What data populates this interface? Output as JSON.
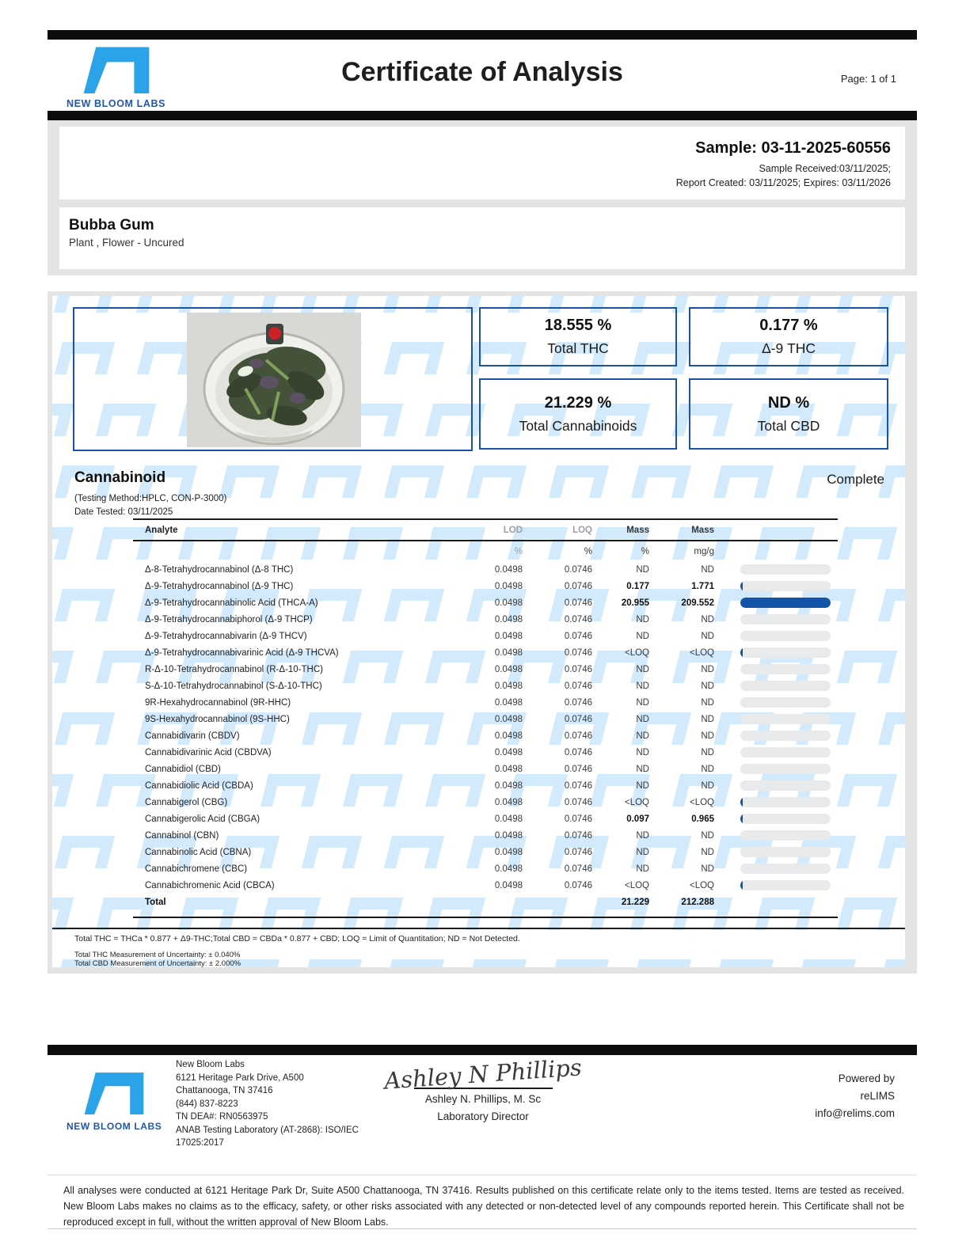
{
  "brand": {
    "name": "NEW BLOOM LABS"
  },
  "header": {
    "title": "Certificate of Analysis",
    "page_label": "Page: 1 of 1"
  },
  "sample": {
    "sample_line": "Sample: 03-11-2025-60556",
    "received_line": "Sample Received:03/11/2025;",
    "report_line": "Report Created: 03/11/2025; Expires: 03/11/2026"
  },
  "product": {
    "name": "Bubba Gum",
    "description": "Plant , Flower - Uncured"
  },
  "summary": {
    "boxes": [
      {
        "value": "18.555 %",
        "label": "Total THC"
      },
      {
        "value": "0.177 %",
        "label": "Δ-9 THC"
      },
      {
        "value": "21.229 %",
        "label": "Total Cannabinoids"
      },
      {
        "value": "ND %",
        "label": "Total CBD"
      }
    ]
  },
  "cannabinoid": {
    "section_title": "Cannabinoid",
    "status": "Complete",
    "testing_method": "(Testing Method:HPLC, CON-P-3000)",
    "date_tested": "Date Tested: 03/11/2025",
    "columns": [
      "Analyte",
      "LOD",
      "LOQ",
      "Mass",
      "Mass"
    ],
    "units": [
      "%",
      "%",
      "%",
      "mg/g"
    ],
    "max_bar_percent": 20.955,
    "rows": [
      {
        "analyte": "Δ-8-Tetrahydrocannabinol (Δ-8 THC)",
        "lod": "0.0498",
        "loq": "0.0746",
        "mass_pct": "ND",
        "mass_mg": "ND"
      },
      {
        "analyte": "Δ-9-Tetrahydrocannabinol (Δ-9 THC)",
        "lod": "0.0498",
        "loq": "0.0746",
        "mass_pct": "0.177",
        "mass_mg": "1.771"
      },
      {
        "analyte": "Δ-9-Tetrahydrocannabinolic Acid (THCA-A)",
        "lod": "0.0498",
        "loq": "0.0746",
        "mass_pct": "20.955",
        "mass_mg": "209.552"
      },
      {
        "analyte": "Δ-9-Tetrahydrocannabiphorol (Δ-9 THCP)",
        "lod": "0.0498",
        "loq": "0.0746",
        "mass_pct": "ND",
        "mass_mg": "ND"
      },
      {
        "analyte": "Δ-9-Tetrahydrocannabivarin (Δ-9 THCV)",
        "lod": "0.0498",
        "loq": "0.0746",
        "mass_pct": "ND",
        "mass_mg": "ND"
      },
      {
        "analyte": "Δ-9-Tetrahydrocannabivarinic Acid (Δ-9 THCVA)",
        "lod": "0.0498",
        "loq": "0.0746",
        "mass_pct": "<LOQ",
        "mass_mg": "<LOQ"
      },
      {
        "analyte": "R-Δ-10-Tetrahydrocannabinol (R-Δ-10-THC)",
        "lod": "0.0498",
        "loq": "0.0746",
        "mass_pct": "ND",
        "mass_mg": "ND"
      },
      {
        "analyte": "S-Δ-10-Tetrahydrocannabinol (S-Δ-10-THC)",
        "lod": "0.0498",
        "loq": "0.0746",
        "mass_pct": "ND",
        "mass_mg": "ND"
      },
      {
        "analyte": "9R-Hexahydrocannabinol (9R-HHC)",
        "lod": "0.0498",
        "loq": "0.0746",
        "mass_pct": "ND",
        "mass_mg": "ND"
      },
      {
        "analyte": "9S-Hexahydrocannabinol (9S-HHC)",
        "lod": "0.0498",
        "loq": "0.0746",
        "mass_pct": "ND",
        "mass_mg": "ND"
      },
      {
        "analyte": "Cannabidivarin (CBDV)",
        "lod": "0.0498",
        "loq": "0.0746",
        "mass_pct": "ND",
        "mass_mg": "ND"
      },
      {
        "analyte": "Cannabidivarinic Acid (CBDVA)",
        "lod": "0.0498",
        "loq": "0.0746",
        "mass_pct": "ND",
        "mass_mg": "ND"
      },
      {
        "analyte": "Cannabidiol (CBD)",
        "lod": "0.0498",
        "loq": "0.0746",
        "mass_pct": "ND",
        "mass_mg": "ND"
      },
      {
        "analyte": "Cannabidiolic Acid (CBDA)",
        "lod": "0.0498",
        "loq": "0.0746",
        "mass_pct": "ND",
        "mass_mg": "ND"
      },
      {
        "analyte": "Cannabigerol (CBG)",
        "lod": "0.0498",
        "loq": "0.0746",
        "mass_pct": "<LOQ",
        "mass_mg": "<LOQ"
      },
      {
        "analyte": "Cannabigerolic Acid (CBGA)",
        "lod": "0.0498",
        "loq": "0.0746",
        "mass_pct": "0.097",
        "mass_mg": "0.965"
      },
      {
        "analyte": "Cannabinol (CBN)",
        "lod": "0.0498",
        "loq": "0.0746",
        "mass_pct": "ND",
        "mass_mg": "ND"
      },
      {
        "analyte": "Cannabinolic Acid (CBNA)",
        "lod": "0.0498",
        "loq": "0.0746",
        "mass_pct": "ND",
        "mass_mg": "ND"
      },
      {
        "analyte": "Cannabichromene (CBC)",
        "lod": "0.0498",
        "loq": "0.0746",
        "mass_pct": "ND",
        "mass_mg": "ND"
      },
      {
        "analyte": "Cannabichromenic Acid (CBCA)",
        "lod": "0.0498",
        "loq": "0.0746",
        "mass_pct": "<LOQ",
        "mass_mg": "<LOQ"
      }
    ],
    "total": {
      "label": "Total",
      "mass_pct": "21.229",
      "mass_mg": "212.288"
    },
    "footnote": "Total THC = THCa * 0.877 + Δ9-THC;Total CBD = CBDa * 0.877 + CBD; LOQ = Limit of Quantitation; ND = Not Detected.",
    "uncertainty_thc": "Total THC Measurement of Uncertainty: ± 0.040%",
    "uncertainty_cbd": "Total CBD Measurement of Uncertainty: ± 2.000%"
  },
  "footer": {
    "lab_name": "New Bloom Labs",
    "address_line1": "6121 Heritage Park Drive, A500",
    "address_line2": "Chattanooga, TN 37416",
    "phone": "(844) 837-8223",
    "dea": "TN DEA#: RN0563975",
    "accreditation_line1": "ANAB Testing Laboratory (AT-2868): ISO/IEC",
    "accreditation_line2": "17025:2017",
    "signature_script": "Ashley N Phillips",
    "signer_name": "Ashley N. Phillips, M. Sc",
    "signer_title": "Laboratory Director",
    "powered_by": "Powered by",
    "powered_brand": "reLIMS",
    "contact_email": "info@relims.com"
  },
  "disclaimer": "All analyses were conducted at 6121 Heritage Park Dr, Suite A500 Chattanooga, TN 37416. Results published on this certificate relate only to the items tested. Items are tested as received. New Bloom Labs makes no claims as to the efficacy, safety, or other risks associated with any detected or non-detected level of any compounds reported herein. This Certificate shall not be reproduced except in full, without the written approval of New Bloom Labs.",
  "colors": {
    "accent_blue": "#1a52a8",
    "logo_blue": "#2aa3e8",
    "watermark_blue": "#d2eafb",
    "bar_fill": "#1353a8",
    "bar_track": "#e8eaec"
  }
}
